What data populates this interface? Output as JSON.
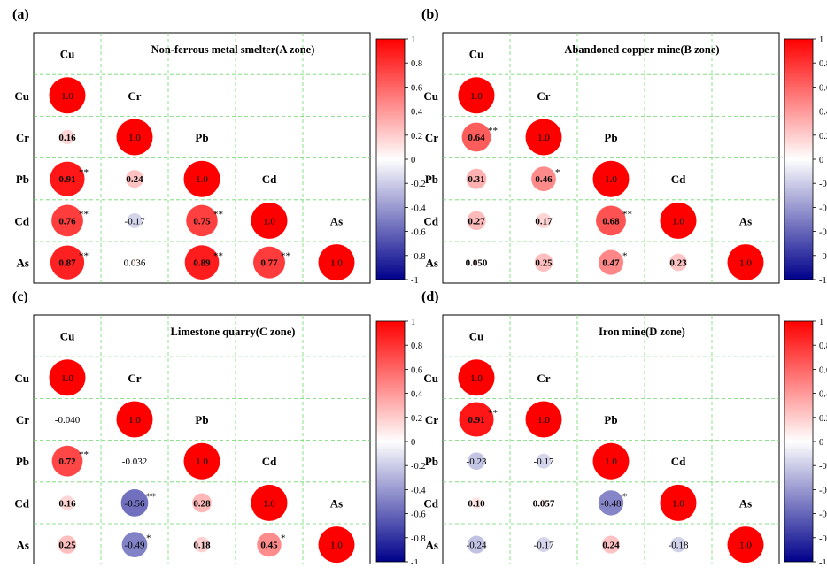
{
  "figure": {
    "shared": {
      "variables": [
        "Cu",
        "Cr",
        "Pb",
        "Cd",
        "As"
      ],
      "colorbar_ticks": [
        "1",
        "0.8",
        "0.6",
        "0.4",
        "0.2",
        "0",
        "-0.2",
        "-0.4",
        "-0.6",
        "-0.8",
        "-1"
      ],
      "colors": {
        "positive": "#ff0000",
        "neutral": "#ffffff",
        "negative": "#00008b",
        "grid": "#6cd96c"
      }
    }
  },
  "chart_data": [
    {
      "type": "heatmap",
      "panel_label": "(a)",
      "title": "Non-ferrous metal smelter(A zone)",
      "variables": [
        "Cu",
        "Cr",
        "Pb",
        "Cd",
        "As"
      ],
      "colorbar_range": [
        -1,
        1
      ],
      "cells": [
        {
          "row": "Cu",
          "col": "Cu",
          "value": 1.0,
          "label": "1.0",
          "sig": ""
        },
        {
          "row": "Cr",
          "col": "Cu",
          "value": 0.16,
          "label": "0.16",
          "sig": ""
        },
        {
          "row": "Cr",
          "col": "Cr",
          "value": 1.0,
          "label": "1.0",
          "sig": ""
        },
        {
          "row": "Pb",
          "col": "Cu",
          "value": 0.91,
          "label": "0.91",
          "sig": "**"
        },
        {
          "row": "Pb",
          "col": "Cr",
          "value": 0.24,
          "label": "0.24",
          "sig": ""
        },
        {
          "row": "Pb",
          "col": "Pb",
          "value": 1.0,
          "label": "1.0",
          "sig": ""
        },
        {
          "row": "Cd",
          "col": "Cu",
          "value": 0.76,
          "label": "0.76",
          "sig": "**"
        },
        {
          "row": "Cd",
          "col": "Cr",
          "value": -0.17,
          "label": "-0.17",
          "sig": ""
        },
        {
          "row": "Cd",
          "col": "Pb",
          "value": 0.75,
          "label": "0.75",
          "sig": "**"
        },
        {
          "row": "Cd",
          "col": "Cd",
          "value": 1.0,
          "label": "1.0",
          "sig": ""
        },
        {
          "row": "As",
          "col": "Cu",
          "value": 0.87,
          "label": "0.87",
          "sig": "**"
        },
        {
          "row": "As",
          "col": "Cr",
          "value": 0.036,
          "label": "0.036",
          "sig": ""
        },
        {
          "row": "As",
          "col": "Pb",
          "value": 0.89,
          "label": "0.89",
          "sig": "**"
        },
        {
          "row": "As",
          "col": "Cd",
          "value": 0.77,
          "label": "0.77",
          "sig": "**"
        },
        {
          "row": "As",
          "col": "As",
          "value": 1.0,
          "label": "1.0",
          "sig": ""
        }
      ]
    },
    {
      "type": "heatmap",
      "panel_label": "(b)",
      "title": "Abandoned copper mine(B zone)",
      "variables": [
        "Cu",
        "Cr",
        "Pb",
        "Cd",
        "As"
      ],
      "colorbar_range": [
        -1,
        1
      ],
      "cells": [
        {
          "row": "Cu",
          "col": "Cu",
          "value": 1.0,
          "label": "1.0",
          "sig": ""
        },
        {
          "row": "Cr",
          "col": "Cu",
          "value": 0.64,
          "label": "0.64",
          "sig": "**"
        },
        {
          "row": "Cr",
          "col": "Cr",
          "value": 1.0,
          "label": "1.0",
          "sig": ""
        },
        {
          "row": "Pb",
          "col": "Cu",
          "value": 0.31,
          "label": "0.31",
          "sig": ""
        },
        {
          "row": "Pb",
          "col": "Cr",
          "value": 0.46,
          "label": "0.46",
          "sig": "*"
        },
        {
          "row": "Pb",
          "col": "Pb",
          "value": 1.0,
          "label": "1.0",
          "sig": ""
        },
        {
          "row": "Cd",
          "col": "Cu",
          "value": 0.27,
          "label": "0.27",
          "sig": ""
        },
        {
          "row": "Cd",
          "col": "Cr",
          "value": 0.17,
          "label": "0.17",
          "sig": ""
        },
        {
          "row": "Cd",
          "col": "Pb",
          "value": 0.68,
          "label": "0.68",
          "sig": "**"
        },
        {
          "row": "Cd",
          "col": "Cd",
          "value": 1.0,
          "label": "1.0",
          "sig": ""
        },
        {
          "row": "As",
          "col": "Cu",
          "value": 0.05,
          "label": "0.050",
          "sig": ""
        },
        {
          "row": "As",
          "col": "Cr",
          "value": 0.25,
          "label": "0.25",
          "sig": ""
        },
        {
          "row": "As",
          "col": "Pb",
          "value": 0.47,
          "label": "0.47",
          "sig": "*"
        },
        {
          "row": "As",
          "col": "Cd",
          "value": 0.23,
          "label": "0.23",
          "sig": ""
        },
        {
          "row": "As",
          "col": "As",
          "value": 1.0,
          "label": "1.0",
          "sig": ""
        }
      ]
    },
    {
      "type": "heatmap",
      "panel_label": "(c)",
      "title": "Limestone quarry(C zone)",
      "variables": [
        "Cu",
        "Cr",
        "Pb",
        "Cd",
        "As"
      ],
      "colorbar_range": [
        -1,
        1
      ],
      "cells": [
        {
          "row": "Cu",
          "col": "Cu",
          "value": 1.0,
          "label": "1.0",
          "sig": ""
        },
        {
          "row": "Cr",
          "col": "Cu",
          "value": -0.04,
          "label": "-0.040",
          "sig": ""
        },
        {
          "row": "Cr",
          "col": "Cr",
          "value": 1.0,
          "label": "1.0",
          "sig": ""
        },
        {
          "row": "Pb",
          "col": "Cu",
          "value": 0.72,
          "label": "0.72",
          "sig": "**"
        },
        {
          "row": "Pb",
          "col": "Cr",
          "value": -0.032,
          "label": "-0.032",
          "sig": ""
        },
        {
          "row": "Pb",
          "col": "Pb",
          "value": 1.0,
          "label": "1.0",
          "sig": ""
        },
        {
          "row": "Cd",
          "col": "Cu",
          "value": 0.16,
          "label": "0.16",
          "sig": ""
        },
        {
          "row": "Cd",
          "col": "Cr",
          "value": -0.56,
          "label": "-0.56",
          "sig": "**"
        },
        {
          "row": "Cd",
          "col": "Pb",
          "value": 0.28,
          "label": "0.28",
          "sig": ""
        },
        {
          "row": "Cd",
          "col": "Cd",
          "value": 1.0,
          "label": "1.0",
          "sig": ""
        },
        {
          "row": "As",
          "col": "Cu",
          "value": 0.25,
          "label": "0.25",
          "sig": ""
        },
        {
          "row": "As",
          "col": "Cr",
          "value": -0.49,
          "label": "-0.49",
          "sig": "*"
        },
        {
          "row": "As",
          "col": "Pb",
          "value": 0.18,
          "label": "0.18",
          "sig": ""
        },
        {
          "row": "As",
          "col": "Cd",
          "value": 0.45,
          "label": "0.45",
          "sig": "*"
        },
        {
          "row": "As",
          "col": "As",
          "value": 1.0,
          "label": "1.0",
          "sig": ""
        }
      ]
    },
    {
      "type": "heatmap",
      "panel_label": "(d)",
      "title": "Iron mine(D zone)",
      "variables": [
        "Cu",
        "Cr",
        "Pb",
        "Cd",
        "As"
      ],
      "colorbar_range": [
        -1,
        1
      ],
      "cells": [
        {
          "row": "Cu",
          "col": "Cu",
          "value": 1.0,
          "label": "1.0",
          "sig": ""
        },
        {
          "row": "Cr",
          "col": "Cu",
          "value": 0.91,
          "label": "0.91",
          "sig": "**"
        },
        {
          "row": "Cr",
          "col": "Cr",
          "value": 1.0,
          "label": "1.0",
          "sig": ""
        },
        {
          "row": "Pb",
          "col": "Cu",
          "value": -0.23,
          "label": "-0.23",
          "sig": ""
        },
        {
          "row": "Pb",
          "col": "Cr",
          "value": -0.17,
          "label": "-0.17",
          "sig": ""
        },
        {
          "row": "Pb",
          "col": "Pb",
          "value": 1.0,
          "label": "1.0",
          "sig": ""
        },
        {
          "row": "Cd",
          "col": "Cu",
          "value": 0.1,
          "label": "0.10",
          "sig": ""
        },
        {
          "row": "Cd",
          "col": "Cr",
          "value": 0.057,
          "label": "0.057",
          "sig": ""
        },
        {
          "row": "Cd",
          "col": "Pb",
          "value": -0.48,
          "label": "-0.48",
          "sig": "*"
        },
        {
          "row": "Cd",
          "col": "Cd",
          "value": 1.0,
          "label": "1.0",
          "sig": ""
        },
        {
          "row": "As",
          "col": "Cu",
          "value": -0.24,
          "label": "-0.24",
          "sig": ""
        },
        {
          "row": "As",
          "col": "Cr",
          "value": -0.17,
          "label": "-0.17",
          "sig": ""
        },
        {
          "row": "As",
          "col": "Pb",
          "value": 0.24,
          "label": "0.24",
          "sig": ""
        },
        {
          "row": "As",
          "col": "Cd",
          "value": -0.18,
          "label": "-0.18",
          "sig": ""
        },
        {
          "row": "As",
          "col": "As",
          "value": 1.0,
          "label": "1.0",
          "sig": ""
        }
      ]
    }
  ]
}
